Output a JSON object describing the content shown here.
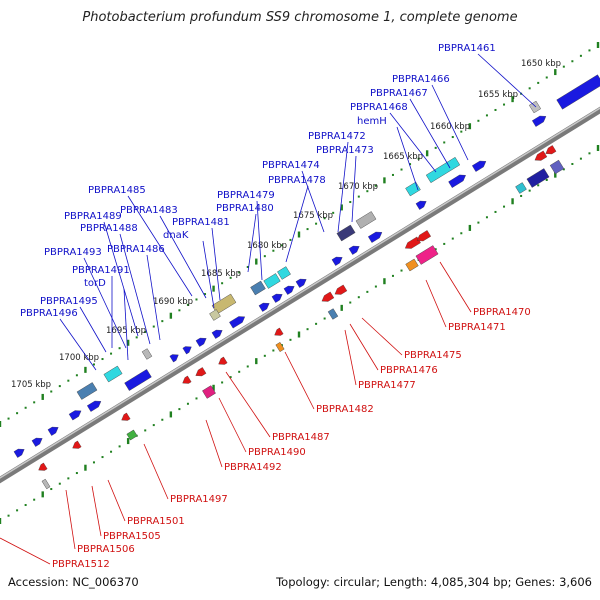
{
  "title": "Photobacterium profundum SS9 chromosome 1, complete genome",
  "footer": {
    "accession": "Accession: NC_006370",
    "summary": "Topology: circular; Length: 4,085,304 bp; Genes: 3,606"
  },
  "colors": {
    "backbone": "#8a8a8a",
    "plus_label": "#1010c8",
    "minus_label": "#d01010",
    "tick": "#208020"
  },
  "kbp_ticks": [
    "1650 kbp",
    "1655 kbp",
    "1660 kbp",
    "1665 kbp",
    "1670 kbp",
    "1675 kbp",
    "1680 kbp",
    "1685 kbp",
    "1690 kbp",
    "1695 kbp",
    "1700 kbp",
    "1705 kbp"
  ],
  "plus_labels": [
    "PBPRA1461",
    "PBPRA1466",
    "PBPRA1467",
    "PBPRA1468",
    "hemH",
    "PBPRA1472",
    "PBPRA1473",
    "PBPRA1474",
    "PBPRA1478",
    "PBPRA1479",
    "PBPRA1480",
    "PBPRA1481",
    "dnaK",
    "PBPRA1483",
    "PBPRA1485",
    "PBPRA1486",
    "PBPRA1488",
    "PBPRA1489",
    "PBPRA1493",
    "PBPRA1491",
    "torD",
    "PBPRA1495",
    "PBPRA1496"
  ],
  "minus_labels": [
    "PBPRA1470",
    "PBPRA1471",
    "PBPRA1475",
    "PBPRA1476",
    "PBPRA1477",
    "PBPRA1482",
    "PBPRA1487",
    "PBPRA1490",
    "PBPRA1492",
    "PBPRA1497",
    "PBPRA1501",
    "PBPRA1505",
    "PBPRA1506",
    "PBPRA1512"
  ]
}
